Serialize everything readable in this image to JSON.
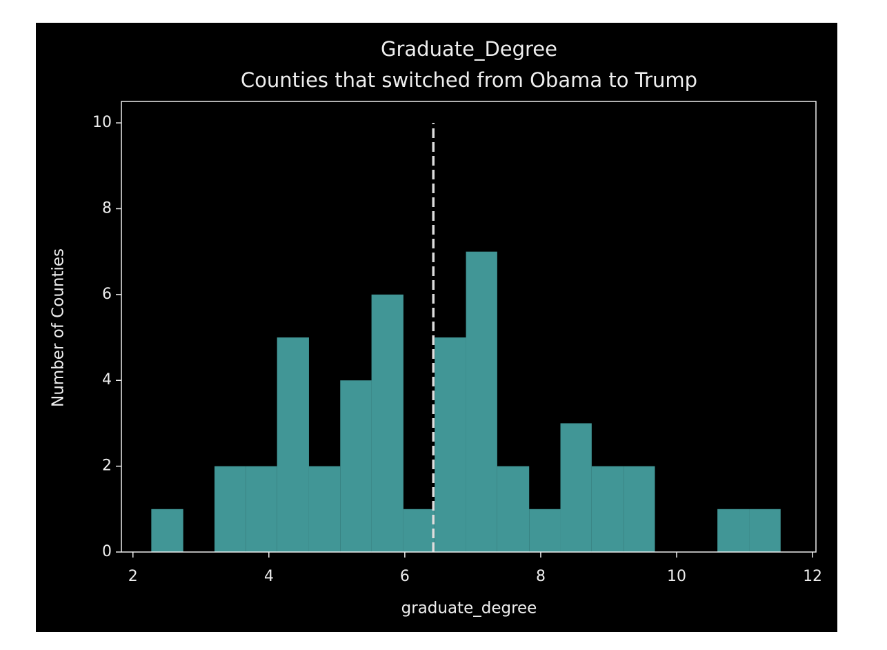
{
  "chart_data": {
    "type": "histogram",
    "title": "Graduate_Degree",
    "subtitle": "Counties that switched from Obama to Trump",
    "x_label": "graduate_degree",
    "y_label": "Number of Counties",
    "bins": [
      2.27,
      2.74,
      3.2,
      3.66,
      4.12,
      4.59,
      5.05,
      5.51,
      5.98,
      6.44,
      6.9,
      7.36,
      7.83,
      8.29,
      8.75,
      9.22,
      9.68,
      10.14,
      10.6,
      11.07,
      11.53
    ],
    "counts": [
      1,
      0,
      2,
      2,
      5,
      2,
      4,
      6,
      1,
      5,
      7,
      2,
      1,
      3,
      2,
      2,
      0,
      0,
      1,
      1
    ],
    "color": "#419696",
    "mean_line": {
      "x": 6.42,
      "ymin": 0,
      "ymax": 10,
      "color": "#dddddd"
    },
    "xlim": [
      1.83,
      12.05
    ],
    "xticks": [
      2,
      4,
      6,
      8,
      10,
      12
    ],
    "ylim": [
      0,
      10.5
    ],
    "yticks": [
      0,
      2,
      4,
      6,
      8,
      10
    ]
  }
}
